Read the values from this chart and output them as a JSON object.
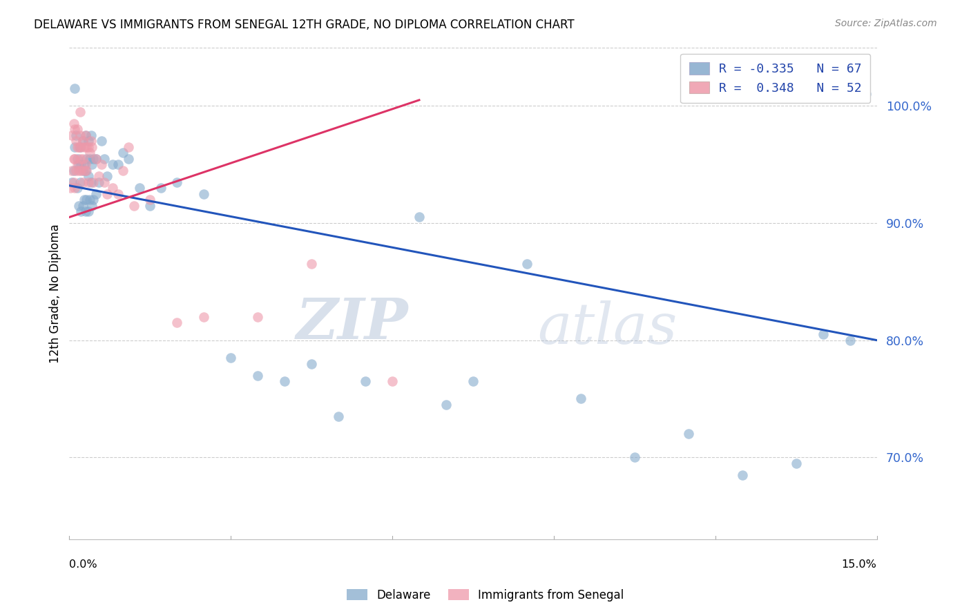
{
  "title": "DELAWARE VS IMMIGRANTS FROM SENEGAL 12TH GRADE, NO DIPLOMA CORRELATION CHART",
  "source": "Source: ZipAtlas.com",
  "ylabel": "12th Grade, No Diploma",
  "legend_blue": "R = -0.335   N = 67",
  "legend_pink": "R =  0.348   N = 52",
  "legend_label_blue": "Delaware",
  "legend_label_pink": "Immigrants from Senegal",
  "blue_color": "#85AACC",
  "pink_color": "#EE99AA",
  "blue_line_color": "#2255BB",
  "pink_line_color": "#DD3366",
  "watermark_zip": "ZIP",
  "watermark_atlas": "atlas",
  "xlim": [
    0.0,
    15.0
  ],
  "ylim": [
    63.0,
    105.0
  ],
  "yticks": [
    70.0,
    80.0,
    90.0,
    100.0
  ],
  "blue_trend_x0": 0.0,
  "blue_trend_y0": 93.2,
  "blue_trend_x1": 15.0,
  "blue_trend_y1": 80.0,
  "pink_trend_x0": 0.0,
  "pink_trend_y0": 90.5,
  "pink_trend_x1": 6.5,
  "pink_trend_y1": 100.5,
  "blue_dots_x": [
    0.05,
    0.08,
    0.1,
    0.1,
    0.12,
    0.15,
    0.15,
    0.18,
    0.18,
    0.2,
    0.2,
    0.22,
    0.22,
    0.25,
    0.25,
    0.25,
    0.28,
    0.28,
    0.3,
    0.3,
    0.3,
    0.32,
    0.32,
    0.35,
    0.35,
    0.35,
    0.38,
    0.38,
    0.4,
    0.4,
    0.42,
    0.42,
    0.45,
    0.45,
    0.5,
    0.5,
    0.55,
    0.6,
    0.65,
    0.7,
    0.8,
    0.9,
    1.0,
    1.1,
    1.3,
    1.5,
    1.7,
    2.0,
    2.5,
    3.0,
    3.5,
    4.0,
    4.5,
    5.0,
    5.5,
    6.5,
    7.0,
    7.5,
    8.5,
    9.5,
    10.5,
    11.5,
    12.5,
    13.5,
    14.0,
    14.5,
    14.8
  ],
  "blue_dots_y": [
    93.5,
    94.5,
    101.5,
    96.5,
    97.5,
    95.5,
    93.0,
    95.0,
    91.5,
    96.5,
    93.5,
    95.0,
    91.0,
    97.0,
    94.5,
    91.5,
    95.0,
    92.0,
    97.5,
    94.5,
    91.0,
    95.5,
    92.0,
    97.0,
    94.0,
    91.0,
    95.5,
    92.0,
    97.5,
    93.5,
    95.0,
    91.5,
    95.5,
    92.0,
    95.5,
    92.5,
    93.5,
    97.0,
    95.5,
    94.0,
    95.0,
    95.0,
    96.0,
    95.5,
    93.0,
    91.5,
    93.0,
    93.5,
    92.5,
    78.5,
    77.0,
    76.5,
    78.0,
    73.5,
    76.5,
    90.5,
    74.5,
    76.5,
    86.5,
    75.0,
    70.0,
    72.0,
    68.5,
    69.5,
    80.5,
    80.0,
    101.0
  ],
  "pink_dots_x": [
    0.02,
    0.05,
    0.05,
    0.08,
    0.08,
    0.08,
    0.1,
    0.1,
    0.1,
    0.12,
    0.12,
    0.15,
    0.15,
    0.15,
    0.18,
    0.18,
    0.2,
    0.2,
    0.2,
    0.22,
    0.22,
    0.25,
    0.25,
    0.25,
    0.28,
    0.28,
    0.3,
    0.3,
    0.32,
    0.32,
    0.35,
    0.35,
    0.38,
    0.4,
    0.42,
    0.45,
    0.5,
    0.55,
    0.6,
    0.65,
    0.7,
    0.8,
    0.9,
    1.0,
    1.1,
    1.2,
    1.5,
    2.0,
    2.5,
    3.5,
    4.5,
    6.0
  ],
  "pink_dots_y": [
    93.0,
    97.5,
    94.5,
    95.5,
    98.5,
    93.5,
    98.0,
    95.5,
    93.0,
    97.0,
    94.5,
    96.5,
    98.0,
    95.0,
    96.5,
    94.5,
    99.5,
    97.5,
    95.5,
    96.5,
    94.5,
    97.0,
    95.5,
    93.5,
    96.5,
    94.5,
    97.5,
    95.0,
    96.5,
    94.5,
    96.5,
    93.5,
    96.0,
    97.0,
    96.5,
    93.5,
    95.5,
    94.0,
    95.0,
    93.5,
    92.5,
    93.0,
    92.5,
    94.5,
    96.5,
    91.5,
    92.0,
    81.5,
    82.0,
    82.0,
    86.5,
    76.5
  ]
}
